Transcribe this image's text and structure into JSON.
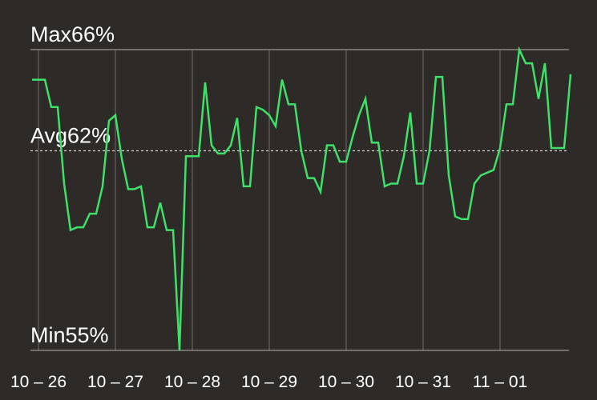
{
  "chart_data": {
    "type": "line",
    "categories": [
      null,
      "10 – 26",
      null,
      null,
      null,
      null,
      null,
      null,
      null,
      null,
      null,
      null,
      null,
      "10 – 27",
      null,
      null,
      null,
      null,
      null,
      null,
      null,
      null,
      null,
      null,
      null,
      "10 – 28",
      null,
      null,
      null,
      null,
      null,
      null,
      null,
      null,
      null,
      null,
      null,
      "10 – 29",
      null,
      null,
      null,
      null,
      null,
      null,
      null,
      null,
      null,
      null,
      null,
      "10 – 30",
      null,
      null,
      null,
      null,
      null,
      null,
      null,
      null,
      null,
      null,
      null,
      "10 – 31",
      null,
      null,
      null,
      null,
      null,
      null,
      null,
      null,
      null,
      null,
      null,
      "11 – 01",
      null,
      null,
      null,
      null,
      null,
      null,
      null,
      null,
      null,
      null,
      null
    ],
    "values": [
      64.9,
      64.9,
      64.9,
      63.9,
      63.9,
      61.1,
      59.4,
      59.5,
      59.5,
      60.0,
      60.0,
      61.0,
      63.4,
      63.6,
      62.0,
      60.9,
      60.9,
      61.0,
      59.5,
      59.5,
      60.4,
      59.4,
      59.4,
      55.0,
      62.1,
      62.1,
      62.1,
      64.8,
      62.5,
      62.2,
      62.2,
      62.5,
      63.5,
      61.0,
      61.0,
      63.9,
      63.8,
      63.6,
      63.2,
      64.9,
      64.0,
      64.0,
      62.3,
      61.3,
      61.3,
      60.8,
      62.5,
      62.5,
      61.9,
      61.9,
      62.8,
      63.6,
      64.2,
      62.6,
      62.6,
      61.0,
      61.1,
      61.1,
      62.1,
      63.7,
      61.1,
      61.1,
      62.3,
      65.0,
      65.0,
      61.4,
      59.9,
      59.8,
      59.8,
      61.1,
      61.4,
      61.5,
      61.6,
      62.4,
      64.0,
      64.0,
      66.0,
      65.5,
      65.5,
      64.2,
      65.5,
      62.4,
      62.4,
      62.4,
      65.1
    ],
    "color": "#3ee06a",
    "ylim": [
      55,
      66
    ],
    "yticks": [
      {
        "value": 66,
        "label": "Max66%"
      },
      {
        "value": 55,
        "label": "Min55%"
      }
    ],
    "average": {
      "value": 62.3,
      "label": "Avg62%"
    },
    "grid": true
  }
}
